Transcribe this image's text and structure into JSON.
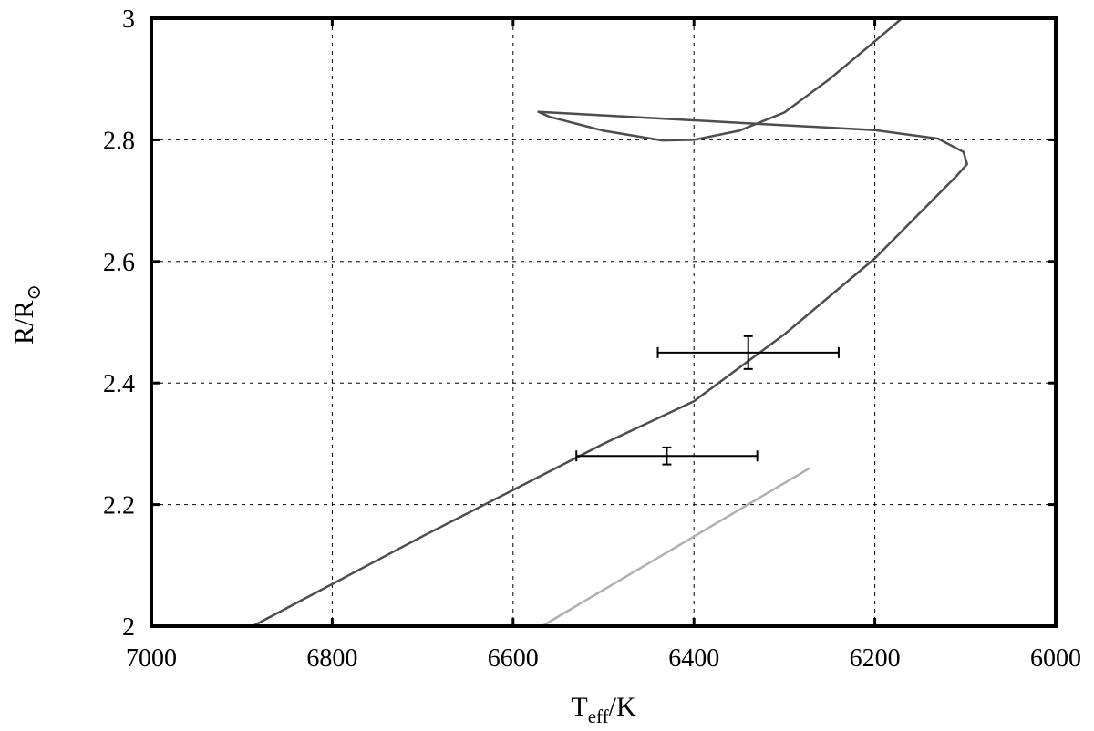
{
  "chart_data": {
    "type": "line",
    "xlabel": {
      "main": "T",
      "sub": "eff",
      "suffix": "/K"
    },
    "ylabel": {
      "main": "R/R",
      "sub": "⊙"
    },
    "xlim": [
      7000,
      6000
    ],
    "ylim": [
      2,
      3
    ],
    "x_reversed": true,
    "grid": true,
    "xticks": [
      7000,
      6800,
      6600,
      6400,
      6200,
      6000
    ],
    "yticks": [
      2,
      2.2,
      2.4,
      2.6,
      2.8,
      3
    ],
    "xtick_labels": [
      "7000",
      "6800",
      "6600",
      "6400",
      "6200",
      "6000"
    ],
    "ytick_labels": [
      "2",
      "2.2",
      "2.4",
      "2.6",
      "2.8",
      "3"
    ],
    "series": [
      {
        "color": "#4d4d4d",
        "points": [
          [
            6888,
            2.0
          ],
          [
            6700,
            2.148
          ],
          [
            6500,
            2.3
          ],
          [
            6400,
            2.37
          ],
          [
            6300,
            2.48
          ],
          [
            6200,
            2.605
          ],
          [
            6150,
            2.68
          ],
          [
            6110,
            2.74
          ],
          [
            6098,
            2.76
          ],
          [
            6102,
            2.78
          ],
          [
            6130,
            2.802
          ],
          [
            6200,
            2.816
          ],
          [
            6350,
            2.828
          ],
          [
            6572,
            2.846
          ],
          [
            6560,
            2.838
          ],
          [
            6500,
            2.815
          ],
          [
            6435,
            2.799
          ],
          [
            6400,
            2.8
          ],
          [
            6350,
            2.815
          ],
          [
            6300,
            2.845
          ],
          [
            6250,
            2.9
          ],
          [
            6200,
            2.962
          ],
          [
            6170,
            3.0
          ]
        ]
      },
      {
        "color": "#b0b0b0",
        "points": [
          [
            6568,
            2.0
          ],
          [
            6272,
            2.26
          ]
        ]
      }
    ],
    "error_points": [
      {
        "x": 6340,
        "y": 2.45,
        "x_err": 100,
        "y_err": 0.027
      },
      {
        "x": 6430,
        "y": 2.28,
        "x_err": 100,
        "y_err": 0.014
      }
    ]
  }
}
